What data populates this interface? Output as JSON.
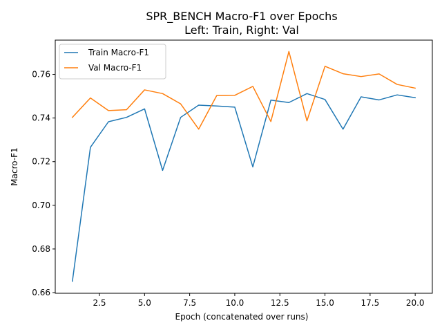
{
  "chart_data": {
    "type": "line",
    "title": "SPR_BENCH Macro-F1 over Epochs",
    "subtitle": "Left: Train, Right: Val",
    "xlabel": "Epoch (concatenated over runs)",
    "ylabel": "Macro-F1",
    "xlim": [
      0.05,
      20.95
    ],
    "ylim": [
      0.6597,
      0.7757
    ],
    "xticks": [
      2.5,
      5.0,
      7.5,
      10.0,
      12.5,
      15.0,
      17.5,
      20.0
    ],
    "xtick_labels": [
      "2.5",
      "5.0",
      "7.5",
      "10.0",
      "12.5",
      "15.0",
      "17.5",
      "20.0"
    ],
    "yticks": [
      0.66,
      0.68,
      0.7,
      0.72,
      0.74,
      0.76
    ],
    "ytick_labels": [
      "0.66",
      "0.68",
      "0.70",
      "0.72",
      "0.74",
      "0.76"
    ],
    "legend_position": "upper-left",
    "grid": false,
    "x": [
      1,
      2,
      3,
      4,
      5,
      6,
      7,
      8,
      9,
      10,
      11,
      12,
      13,
      14,
      15,
      16,
      17,
      18,
      19,
      20
    ],
    "series": [
      {
        "name": "Train Macro-F1",
        "color": "#1f77b4",
        "values": [
          0.6652,
          0.7266,
          0.7383,
          0.7403,
          0.7442,
          0.716,
          0.7403,
          0.7459,
          0.7455,
          0.745,
          0.7176,
          0.7482,
          0.7471,
          0.7512,
          0.7485,
          0.7349,
          0.7497,
          0.7483,
          0.7506,
          0.7493
        ]
      },
      {
        "name": "Val Macro-F1",
        "color": "#ff7f0e",
        "values": [
          0.7403,
          0.7492,
          0.7434,
          0.7438,
          0.7529,
          0.7512,
          0.7465,
          0.7349,
          0.7503,
          0.7504,
          0.7545,
          0.7384,
          0.7705,
          0.7387,
          0.7637,
          0.7603,
          0.759,
          0.7602,
          0.7554,
          0.7537
        ]
      }
    ]
  }
}
